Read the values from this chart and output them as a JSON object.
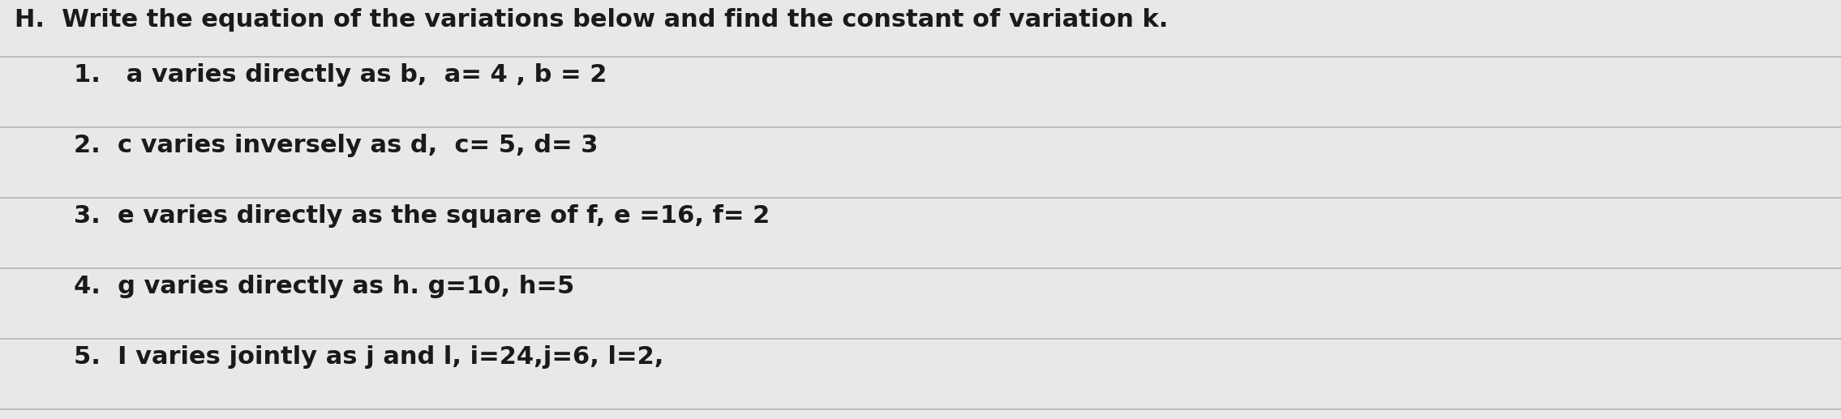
{
  "bg_color": "#e8e8e8",
  "text_color": "#1a1a1a",
  "header": "H.  Write the equation of the variations below and find the constant of variation k.",
  "items": [
    "1.   a varies directly as b,  a= 4 , b = 2",
    "2.  c varies inversely as d,  c= 5, d= 3",
    "3.  e varies directly as the square of f, e =16, f= 2",
    "4.  g varies directly as h. g=10, h=5",
    "5.  I varies jointly as j and l, i=24,j=6, l=2,"
  ],
  "header_fontsize": 22,
  "item_fontsize": 22,
  "figsize": [
    22.7,
    5.17
  ],
  "dpi": 100,
  "line_color": "#b0b0b0",
  "line_alpha": 0.9,
  "line_width": 1.2
}
